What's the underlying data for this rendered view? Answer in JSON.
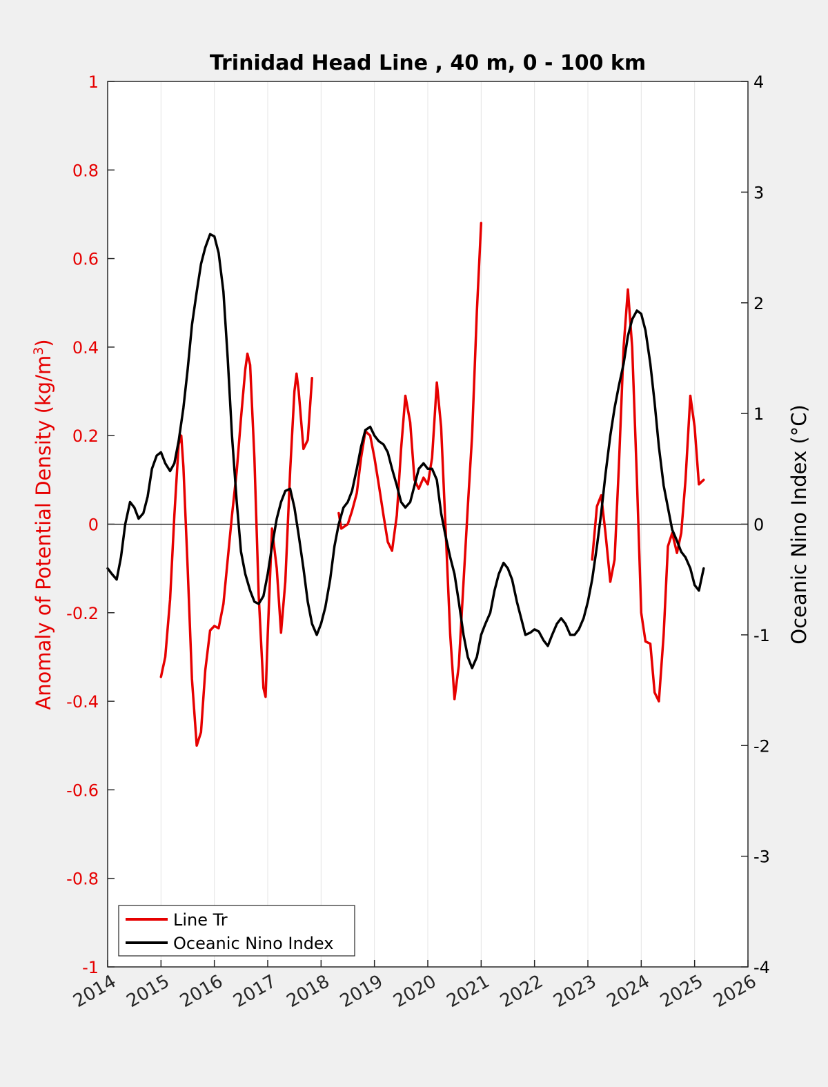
{
  "chart_data": {
    "type": "line",
    "title": "Trinidad Head Line , 40 m, 0 - 100 km",
    "xlim": [
      2014,
      2026
    ],
    "x_ticks": [
      "2014",
      "2015",
      "2016",
      "2017",
      "2018",
      "2019",
      "2020",
      "2021",
      "2022",
      "2023",
      "2024",
      "2025",
      "2026"
    ],
    "ylabel_left": "Anomaly of Potential Density (kg/m",
    "ylabel_left_sup": "3",
    "ylabel_left_close": ")",
    "ylim_left": [
      -1,
      1
    ],
    "yticks_left": [
      "1",
      "0.8",
      "0.6",
      "0.4",
      "0.2",
      "0",
      "-0.2",
      "-0.4",
      "-0.6",
      "-0.8",
      "-1"
    ],
    "ylabel_right": "Oceanic Nino Index (°C)",
    "ylim_right": [
      -4,
      4
    ],
    "yticks_right": [
      "4",
      "3",
      "2",
      "1",
      "0",
      "-1",
      "-2",
      "-3",
      "-4"
    ],
    "grid": "vertical",
    "legend_position": "bottom-left",
    "colors": {
      "line_tr": "#e60000",
      "oni": "#000000"
    },
    "legend": [
      "Line Tr",
      "Oceanic Nino Index"
    ],
    "series": [
      {
        "name": "Line Tr",
        "axis": "left",
        "color": "#e60000",
        "segments": [
          [
            [
              2015.0,
              -0.345
            ],
            [
              2015.08,
              -0.3
            ],
            [
              2015.17,
              -0.17
            ],
            [
              2015.25,
              0.02
            ],
            [
              2015.33,
              0.18
            ],
            [
              2015.38,
              0.2
            ],
            [
              2015.42,
              0.13
            ],
            [
              2015.5,
              -0.1
            ],
            [
              2015.58,
              -0.35
            ],
            [
              2015.67,
              -0.5
            ],
            [
              2015.75,
              -0.47
            ],
            [
              2015.83,
              -0.33
            ],
            [
              2015.92,
              -0.24
            ],
            [
              2016.0,
              -0.23
            ],
            [
              2016.08,
              -0.235
            ],
            [
              2016.17,
              -0.18
            ],
            [
              2016.25,
              -0.08
            ],
            [
              2016.33,
              0.02
            ],
            [
              2016.42,
              0.12
            ],
            [
              2016.5,
              0.24
            ],
            [
              2016.58,
              0.35
            ],
            [
              2016.62,
              0.385
            ],
            [
              2016.67,
              0.36
            ],
            [
              2016.75,
              0.15
            ],
            [
              2016.83,
              -0.16
            ],
            [
              2016.92,
              -0.37
            ],
            [
              2016.96,
              -0.39
            ],
            [
              2017.0,
              -0.25
            ],
            [
              2017.08,
              -0.01
            ],
            [
              2017.17,
              -0.1
            ],
            [
              2017.25,
              -0.245
            ],
            [
              2017.33,
              -0.13
            ],
            [
              2017.42,
              0.12
            ],
            [
              2017.5,
              0.3
            ],
            [
              2017.54,
              0.34
            ],
            [
              2017.58,
              0.3
            ],
            [
              2017.67,
              0.17
            ],
            [
              2017.75,
              0.19
            ],
            [
              2017.83,
              0.33
            ]
          ],
          [
            [
              2018.33,
              0.025
            ],
            [
              2018.38,
              -0.01
            ],
            [
              2018.5,
              0.0
            ],
            [
              2018.58,
              0.03
            ],
            [
              2018.67,
              0.07
            ],
            [
              2018.75,
              0.15
            ],
            [
              2018.83,
              0.21
            ],
            [
              2018.92,
              0.2
            ],
            [
              2019.0,
              0.15
            ],
            [
              2019.08,
              0.09
            ],
            [
              2019.17,
              0.02
            ],
            [
              2019.25,
              -0.04
            ],
            [
              2019.33,
              -0.06
            ],
            [
              2019.42,
              0.02
            ],
            [
              2019.5,
              0.17
            ],
            [
              2019.58,
              0.29
            ],
            [
              2019.67,
              0.23
            ],
            [
              2019.75,
              0.1
            ],
            [
              2019.83,
              0.08
            ],
            [
              2019.92,
              0.105
            ],
            [
              2020.0,
              0.09
            ],
            [
              2020.08,
              0.15
            ],
            [
              2020.17,
              0.32
            ],
            [
              2020.25,
              0.22
            ],
            [
              2020.33,
              0.0
            ],
            [
              2020.42,
              -0.25
            ],
            [
              2020.5,
              -0.395
            ],
            [
              2020.58,
              -0.32
            ],
            [
              2020.67,
              -0.13
            ],
            [
              2020.75,
              0.04
            ],
            [
              2020.83,
              0.2
            ],
            [
              2020.92,
              0.48
            ],
            [
              2021.0,
              0.68
            ]
          ],
          [
            [
              2023.08,
              -0.08
            ],
            [
              2023.17,
              0.04
            ],
            [
              2023.25,
              0.065
            ],
            [
              2023.33,
              -0.02
            ],
            [
              2023.42,
              -0.13
            ],
            [
              2023.5,
              -0.08
            ],
            [
              2023.58,
              0.13
            ],
            [
              2023.67,
              0.4
            ],
            [
              2023.75,
              0.53
            ],
            [
              2023.83,
              0.4
            ],
            [
              2023.92,
              0.1
            ],
            [
              2024.0,
              -0.2
            ],
            [
              2024.08,
              -0.265
            ],
            [
              2024.17,
              -0.27
            ],
            [
              2024.25,
              -0.38
            ],
            [
              2024.33,
              -0.4
            ],
            [
              2024.42,
              -0.25
            ],
            [
              2024.5,
              -0.05
            ],
            [
              2024.58,
              -0.02
            ],
            [
              2024.67,
              -0.065
            ],
            [
              2024.75,
              -0.02
            ],
            [
              2024.83,
              0.1
            ],
            [
              2024.92,
              0.29
            ],
            [
              2025.0,
              0.22
            ],
            [
              2025.08,
              0.09
            ],
            [
              2025.17,
              0.1
            ]
          ]
        ]
      },
      {
        "name": "Oceanic Nino Index",
        "axis": "right",
        "color": "#000000",
        "points": [
          [
            2014.0,
            -0.4
          ],
          [
            2014.08,
            -0.45
          ],
          [
            2014.17,
            -0.5
          ],
          [
            2014.25,
            -0.3
          ],
          [
            2014.33,
            0.0
          ],
          [
            2014.42,
            0.2
          ],
          [
            2014.5,
            0.15
          ],
          [
            2014.58,
            0.05
          ],
          [
            2014.67,
            0.1
          ],
          [
            2014.75,
            0.25
          ],
          [
            2014.83,
            0.5
          ],
          [
            2014.92,
            0.62
          ],
          [
            2015.0,
            0.65
          ],
          [
            2015.08,
            0.55
          ],
          [
            2015.17,
            0.48
          ],
          [
            2015.25,
            0.55
          ],
          [
            2015.33,
            0.75
          ],
          [
            2015.42,
            1.05
          ],
          [
            2015.5,
            1.4
          ],
          [
            2015.58,
            1.8
          ],
          [
            2015.67,
            2.1
          ],
          [
            2015.75,
            2.35
          ],
          [
            2015.83,
            2.5
          ],
          [
            2015.92,
            2.62
          ],
          [
            2016.0,
            2.6
          ],
          [
            2016.08,
            2.45
          ],
          [
            2016.17,
            2.1
          ],
          [
            2016.25,
            1.5
          ],
          [
            2016.33,
            0.8
          ],
          [
            2016.42,
            0.2
          ],
          [
            2016.5,
            -0.25
          ],
          [
            2016.58,
            -0.45
          ],
          [
            2016.67,
            -0.6
          ],
          [
            2016.75,
            -0.7
          ],
          [
            2016.83,
            -0.72
          ],
          [
            2016.92,
            -0.65
          ],
          [
            2017.0,
            -0.45
          ],
          [
            2017.08,
            -0.2
          ],
          [
            2017.17,
            0.05
          ],
          [
            2017.25,
            0.2
          ],
          [
            2017.33,
            0.3
          ],
          [
            2017.42,
            0.32
          ],
          [
            2017.5,
            0.15
          ],
          [
            2017.58,
            -0.1
          ],
          [
            2017.67,
            -0.4
          ],
          [
            2017.75,
            -0.7
          ],
          [
            2017.83,
            -0.9
          ],
          [
            2017.92,
            -1.0
          ],
          [
            2018.0,
            -0.9
          ],
          [
            2018.08,
            -0.75
          ],
          [
            2018.17,
            -0.5
          ],
          [
            2018.25,
            -0.2
          ],
          [
            2018.33,
            0.0
          ],
          [
            2018.42,
            0.15
          ],
          [
            2018.5,
            0.2
          ],
          [
            2018.58,
            0.3
          ],
          [
            2018.67,
            0.5
          ],
          [
            2018.75,
            0.7
          ],
          [
            2018.83,
            0.85
          ],
          [
            2018.92,
            0.88
          ],
          [
            2019.0,
            0.8
          ],
          [
            2019.08,
            0.75
          ],
          [
            2019.17,
            0.72
          ],
          [
            2019.25,
            0.65
          ],
          [
            2019.33,
            0.5
          ],
          [
            2019.42,
            0.35
          ],
          [
            2019.5,
            0.2
          ],
          [
            2019.58,
            0.15
          ],
          [
            2019.67,
            0.2
          ],
          [
            2019.75,
            0.35
          ],
          [
            2019.83,
            0.5
          ],
          [
            2019.92,
            0.55
          ],
          [
            2020.0,
            0.5
          ],
          [
            2020.08,
            0.5
          ],
          [
            2020.17,
            0.4
          ],
          [
            2020.25,
            0.1
          ],
          [
            2020.33,
            -0.1
          ],
          [
            2020.42,
            -0.3
          ],
          [
            2020.5,
            -0.45
          ],
          [
            2020.58,
            -0.7
          ],
          [
            2020.67,
            -1.0
          ],
          [
            2020.75,
            -1.2
          ],
          [
            2020.83,
            -1.3
          ],
          [
            2020.92,
            -1.2
          ],
          [
            2021.0,
            -1.0
          ],
          [
            2021.08,
            -0.9
          ],
          [
            2021.17,
            -0.8
          ],
          [
            2021.25,
            -0.6
          ],
          [
            2021.33,
            -0.45
          ],
          [
            2021.42,
            -0.35
          ],
          [
            2021.5,
            -0.4
          ],
          [
            2021.58,
            -0.5
          ],
          [
            2021.67,
            -0.7
          ],
          [
            2021.75,
            -0.85
          ],
          [
            2021.83,
            -1.0
          ],
          [
            2021.92,
            -0.98
          ],
          [
            2022.0,
            -0.95
          ],
          [
            2022.08,
            -0.97
          ],
          [
            2022.17,
            -1.05
          ],
          [
            2022.25,
            -1.1
          ],
          [
            2022.33,
            -1.0
          ],
          [
            2022.42,
            -0.9
          ],
          [
            2022.5,
            -0.85
          ],
          [
            2022.58,
            -0.9
          ],
          [
            2022.67,
            -1.0
          ],
          [
            2022.75,
            -1.0
          ],
          [
            2022.83,
            -0.95
          ],
          [
            2022.92,
            -0.85
          ],
          [
            2023.0,
            -0.7
          ],
          [
            2023.08,
            -0.5
          ],
          [
            2023.17,
            -0.2
          ],
          [
            2023.25,
            0.1
          ],
          [
            2023.33,
            0.45
          ],
          [
            2023.42,
            0.8
          ],
          [
            2023.5,
            1.05
          ],
          [
            2023.58,
            1.25
          ],
          [
            2023.67,
            1.45
          ],
          [
            2023.75,
            1.7
          ],
          [
            2023.83,
            1.85
          ],
          [
            2023.92,
            1.93
          ],
          [
            2024.0,
            1.9
          ],
          [
            2024.08,
            1.75
          ],
          [
            2024.17,
            1.45
          ],
          [
            2024.25,
            1.1
          ],
          [
            2024.33,
            0.7
          ],
          [
            2024.42,
            0.35
          ],
          [
            2024.5,
            0.15
          ],
          [
            2024.58,
            -0.05
          ],
          [
            2024.67,
            -0.15
          ],
          [
            2024.75,
            -0.25
          ],
          [
            2024.83,
            -0.3
          ],
          [
            2024.92,
            -0.4
          ],
          [
            2025.0,
            -0.55
          ],
          [
            2025.08,
            -0.6
          ],
          [
            2025.17,
            -0.4
          ]
        ]
      }
    ]
  }
}
